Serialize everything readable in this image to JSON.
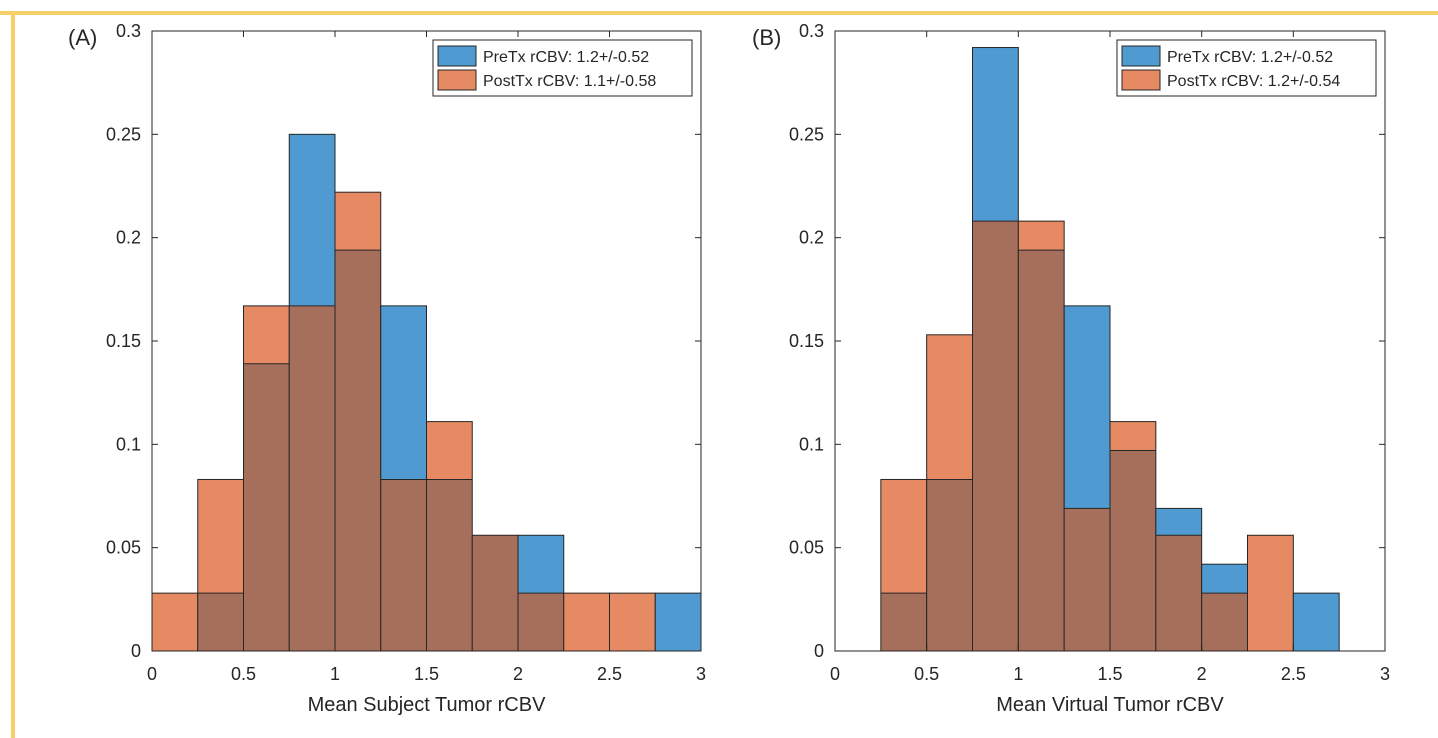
{
  "colors": {
    "pre": "#4f9bd1",
    "post": "#e68a64",
    "frame": "#f6cf69"
  },
  "chart_data": [
    {
      "type": "histogram",
      "panel_label": "(A)",
      "xlabel": "Mean Subject Tumor rCBV",
      "ylabel": "",
      "xlim": [
        0,
        3
      ],
      "ylim": [
        0,
        0.3
      ],
      "xticks": [
        "0",
        "0.5",
        "1",
        "1.5",
        "2",
        "2.5",
        "3"
      ],
      "yticks": [
        "0",
        "0.05",
        "0.1",
        "0.15",
        "0.2",
        "0.25",
        "0.3"
      ],
      "bin_edges": [
        0,
        0.25,
        0.5,
        0.75,
        1.0,
        1.25,
        1.5,
        1.75,
        2.0,
        2.25,
        2.5,
        2.75,
        3.0
      ],
      "legend_position": "top-right",
      "series": [
        {
          "name": "PreTx rCBV: 1.2+/-0.52",
          "values": [
            0,
            0.028,
            0.139,
            0.25,
            0.194,
            0.167,
            0.083,
            0.056,
            0.056,
            0,
            0,
            0.028
          ]
        },
        {
          "name": "PostTx rCBV: 1.1+/-0.58",
          "values": [
            0.028,
            0.083,
            0.167,
            0.167,
            0.222,
            0.083,
            0.111,
            0.056,
            0.028,
            0.028,
            0.028,
            0
          ]
        }
      ]
    },
    {
      "type": "histogram",
      "panel_label": "(B)",
      "xlabel": "Mean Virtual Tumor rCBV",
      "ylabel": "",
      "xlim": [
        0,
        3
      ],
      "ylim": [
        0,
        0.3
      ],
      "xticks": [
        "0",
        "0.5",
        "1",
        "1.5",
        "2",
        "2.5",
        "3"
      ],
      "yticks": [
        "0",
        "0.05",
        "0.1",
        "0.15",
        "0.2",
        "0.25",
        "0.3"
      ],
      "bin_edges": [
        0.25,
        0.5,
        0.75,
        1.0,
        1.25,
        1.5,
        1.75,
        2.0,
        2.25,
        2.5,
        2.75
      ],
      "legend_position": "top-right",
      "series": [
        {
          "name": "PreTx rCBV: 1.2+/-0.52",
          "values": [
            0.028,
            0.083,
            0.292,
            0.194,
            0.167,
            0.097,
            0.069,
            0.042,
            0,
            0.028
          ]
        },
        {
          "name": "PostTx rCBV: 1.2+/-0.54",
          "values": [
            0.083,
            0.153,
            0.208,
            0.208,
            0.069,
            0.111,
            0.056,
            0.028,
            0.056,
            0
          ]
        }
      ]
    }
  ]
}
